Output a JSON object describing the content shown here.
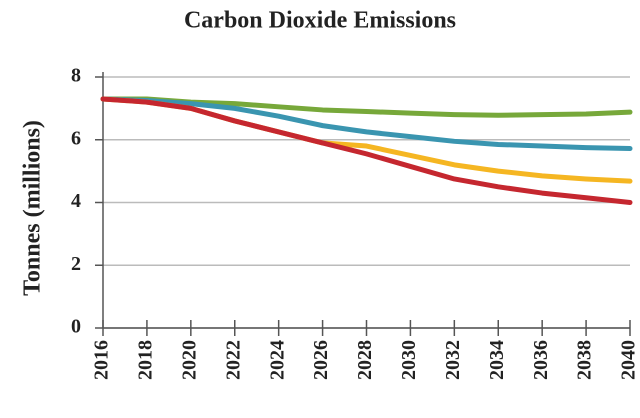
{
  "chart_data": {
    "type": "line",
    "title": "Carbon Dioxide Emissions",
    "y_label": "Tonnes (millions)",
    "x": [
      2016,
      2018,
      2020,
      2022,
      2024,
      2026,
      2028,
      2030,
      2032,
      2034,
      2036,
      2038,
      2040
    ],
    "series": [
      {
        "color": "#77a83a",
        "values": [
          7.3,
          7.3,
          7.2,
          7.15,
          7.05,
          6.95,
          6.9,
          6.85,
          6.8,
          6.78,
          6.8,
          6.82,
          6.88
        ]
      },
      {
        "color": "#3a95b0",
        "values": [
          7.3,
          7.25,
          7.15,
          7.0,
          6.75,
          6.45,
          6.25,
          6.1,
          5.95,
          5.85,
          5.8,
          5.75,
          5.72
        ]
      },
      {
        "color": "#f5b622",
        "values": [
          7.3,
          7.2,
          7.0,
          6.6,
          6.25,
          5.9,
          5.8,
          5.5,
          5.2,
          5.0,
          4.85,
          4.75,
          4.68
        ]
      },
      {
        "color": "#c5272f",
        "values": [
          7.3,
          7.2,
          7.0,
          6.6,
          6.25,
          5.9,
          5.55,
          5.15,
          4.75,
          4.5,
          4.3,
          4.15,
          4.0
        ]
      }
    ],
    "xlim": [
      2016,
      2040
    ],
    "xticks": [
      2016,
      2018,
      2020,
      2022,
      2024,
      2026,
      2028,
      2030,
      2032,
      2034,
      2036,
      2038,
      2040
    ],
    "ylim": [
      0,
      8
    ],
    "yticks": [
      0,
      2,
      4,
      6,
      8
    ],
    "grid": true
  }
}
